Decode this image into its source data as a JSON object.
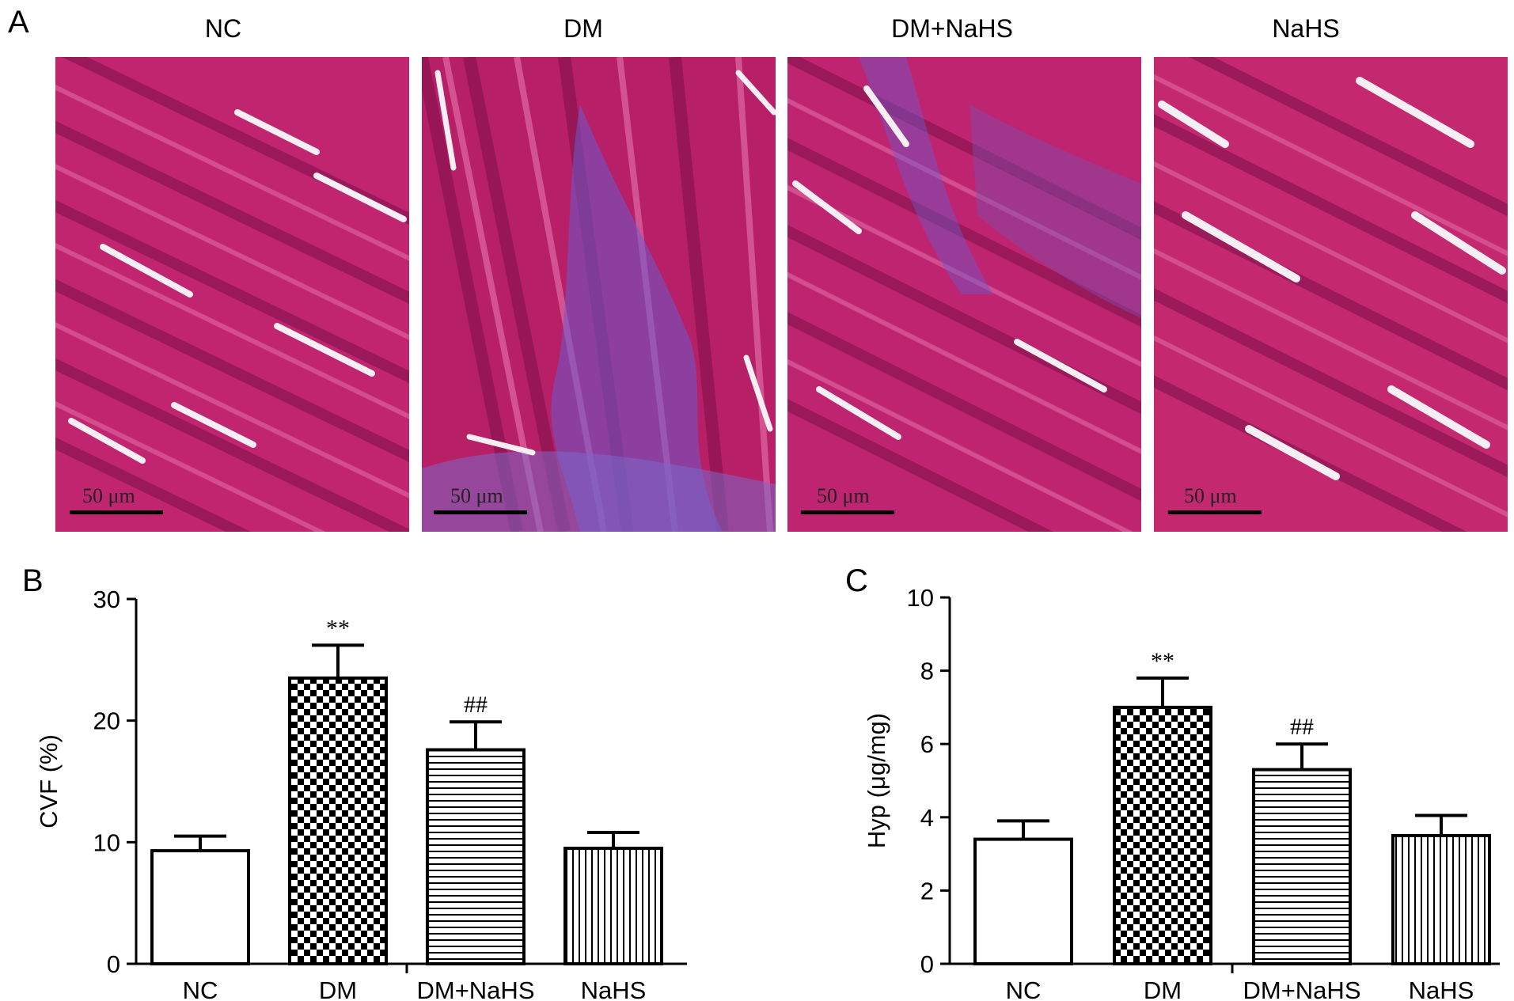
{
  "panels": {
    "a_label": "A",
    "b_label": "B",
    "c_label": "C"
  },
  "micrographs": [
    {
      "title": "NC",
      "scale": "50 μm"
    },
    {
      "title": "DM",
      "scale": "50 μm"
    },
    {
      "title": "DM+NaHS",
      "scale": "50 μm"
    },
    {
      "title": "NaHS",
      "scale": "50 μm"
    }
  ],
  "colors": {
    "tissue_base": "#c2256f",
    "fiber_dark": "#8a1550",
    "fiber_light": "#e06aa3",
    "collagen": "#6a5acd",
    "gap": "#f6eef3"
  },
  "chart_data": [
    {
      "type": "bar",
      "categories": [
        "NC",
        "DM",
        "DM+NaHS",
        "NaHS"
      ],
      "values": [
        9.3,
        23.5,
        17.6,
        9.5
      ],
      "error": [
        1.2,
        2.7,
        2.3,
        1.3
      ],
      "significance": [
        "",
        "**",
        "##",
        ""
      ],
      "patterns": [
        "solid-white",
        "checker",
        "horizontal-lines",
        "vertical-lines"
      ],
      "ylabel": "CVF (%)",
      "ylim": [
        0,
        30
      ],
      "yticks": [
        0,
        10,
        20,
        30
      ],
      "grid": false
    },
    {
      "type": "bar",
      "categories": [
        "NC",
        "DM",
        "DM+NaHS",
        "NaHS"
      ],
      "values": [
        3.4,
        7.0,
        5.3,
        3.5
      ],
      "error": [
        0.5,
        0.8,
        0.7,
        0.55
      ],
      "significance": [
        "",
        "**",
        "##",
        ""
      ],
      "patterns": [
        "solid-white",
        "checker",
        "horizontal-lines",
        "vertical-lines"
      ],
      "ylabel": "Hyp (μg/mg)",
      "ylim": [
        0,
        10
      ],
      "yticks": [
        0,
        2,
        4,
        6,
        8,
        10
      ],
      "grid": false
    }
  ]
}
